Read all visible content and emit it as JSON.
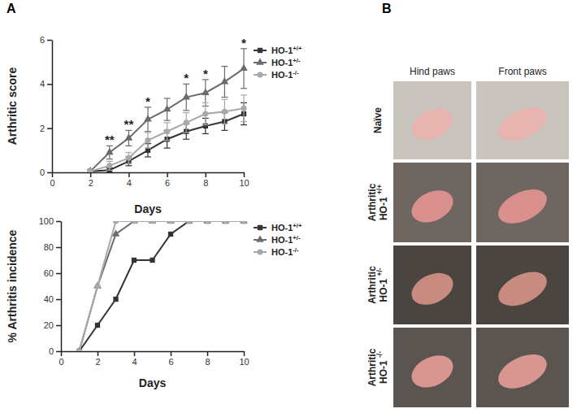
{
  "chart_data": [
    {
      "type": "line",
      "x_label": "Days",
      "y_label": "Arthritic score",
      "x": [
        2,
        3,
        4,
        5,
        6,
        7,
        8,
        9,
        10
      ],
      "xlim": [
        0,
        10
      ],
      "xticks": [
        0,
        2,
        4,
        6,
        8,
        10
      ],
      "ylim": [
        0,
        6
      ],
      "yticks": [
        0,
        2,
        4,
        6
      ],
      "legend": "right",
      "series": [
        {
          "name": "HO-1+/+",
          "color": "#333333",
          "marker": "square",
          "values": [
            0.05,
            0.1,
            0.5,
            1.0,
            1.5,
            1.85,
            2.1,
            2.3,
            2.65
          ],
          "errors": [
            0.05,
            0.1,
            0.2,
            0.3,
            0.4,
            0.35,
            0.35,
            0.4,
            0.5
          ]
        },
        {
          "name": "HO-1+/-",
          "color": "#6b6b6b",
          "marker": "triangle",
          "values": [
            0.05,
            0.9,
            1.55,
            2.4,
            2.85,
            3.4,
            3.6,
            4.1,
            4.7
          ],
          "errors": [
            0.05,
            0.3,
            0.35,
            0.55,
            0.5,
            0.6,
            0.6,
            0.7,
            0.9
          ]
        },
        {
          "name": "HO-1-/-",
          "color": "#a8a8a8",
          "marker": "circle",
          "values": [
            0.05,
            0.3,
            0.65,
            1.45,
            1.85,
            2.25,
            2.65,
            2.75,
            2.9
          ],
          "errors": [
            0.05,
            0.2,
            0.25,
            0.35,
            0.4,
            0.45,
            0.5,
            0.55,
            0.6
          ]
        }
      ],
      "annotations": [
        {
          "x": 3,
          "text": "**"
        },
        {
          "x": 4,
          "text": "**"
        },
        {
          "x": 5,
          "text": "*"
        },
        {
          "x": 7,
          "text": "*"
        },
        {
          "x": 8,
          "text": "*"
        },
        {
          "x": 10,
          "text": "*"
        }
      ]
    },
    {
      "type": "line",
      "x_label": "Days",
      "y_label": "% Arthritis incidence",
      "x": [
        1,
        2,
        3,
        4,
        5,
        6,
        7,
        8,
        9,
        10
      ],
      "xlim": [
        0,
        10
      ],
      "xticks": [
        0,
        2,
        4,
        6,
        8,
        10
      ],
      "ylim": [
        0,
        100
      ],
      "yticks": [
        0,
        20,
        40,
        60,
        80,
        100
      ],
      "legend": "right",
      "series": [
        {
          "name": "HO-1+/+",
          "color": "#333333",
          "marker": "square",
          "values": [
            0,
            20,
            40,
            70,
            70,
            90,
            100,
            100,
            100,
            100
          ]
        },
        {
          "name": "HO-1+/-",
          "color": "#6b6b6b",
          "marker": "triangle",
          "values": [
            0,
            50,
            90,
            100,
            100,
            100,
            100,
            100,
            100,
            100
          ]
        },
        {
          "name": "HO-1-/-",
          "color": "#a8a8a8",
          "marker": "circle",
          "values": [
            0,
            50,
            100,
            100,
            100,
            100,
            100,
            100,
            100,
            100
          ]
        }
      ]
    }
  ],
  "panels": [
    {
      "label": "A"
    },
    {
      "label": "B",
      "columns": [
        "Hind paws",
        "Front paws"
      ],
      "rows": [
        [
          "Naïve"
        ],
        [
          "Arthritic",
          "HO-1 +/+"
        ],
        [
          "Arthritic",
          "HO-1 +/-"
        ],
        [
          "Arthritic",
          "HO-1 -/-"
        ]
      ]
    }
  ]
}
